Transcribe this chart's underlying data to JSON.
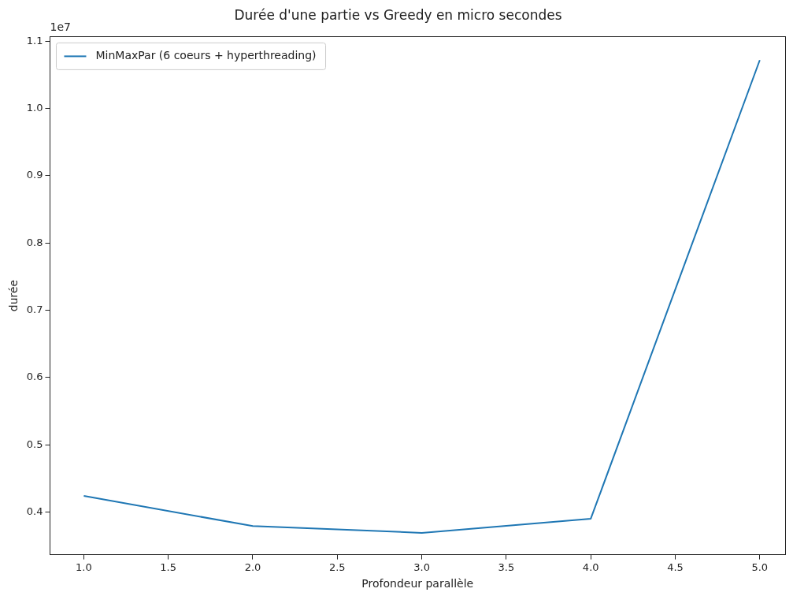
{
  "chart_data": {
    "type": "line",
    "title": "Durée d'une partie vs Greedy en micro secondes",
    "xlabel": "Profondeur parallèle",
    "ylabel": "durée",
    "annotations": [
      "1e7"
    ],
    "x": [
      1,
      2,
      3,
      4,
      5
    ],
    "series": [
      {
        "name": "MinMaxPar (6 coeurs + hyperthreading)",
        "color": "#1f77b4",
        "values": [
          0.424,
          0.379,
          0.369,
          0.39,
          1.072
        ]
      }
    ],
    "xlim": [
      0.8,
      5.15
    ],
    "xticks": [
      {
        "value": 1,
        "label": "1.0"
      },
      {
        "value": 1.5,
        "label": "1.5"
      },
      {
        "value": 2,
        "label": "2.0"
      },
      {
        "value": 2.5,
        "label": "2.5"
      },
      {
        "value": 3,
        "label": "3.0"
      },
      {
        "value": 3.5,
        "label": "3.5"
      },
      {
        "value": 4,
        "label": "4.0"
      },
      {
        "value": 4.5,
        "label": "4.5"
      },
      {
        "value": 5,
        "label": "5.0"
      }
    ],
    "ylim": [
      0.3365,
      1.107
    ],
    "yticks": [
      0.4,
      0.5,
      0.6,
      0.7,
      0.8,
      0.9,
      {
        "value": 1,
        "label": "1.0"
      },
      1.1
    ],
    "legend": "top left",
    "grid": false,
    "marker": "none",
    "line_style": "solid"
  }
}
